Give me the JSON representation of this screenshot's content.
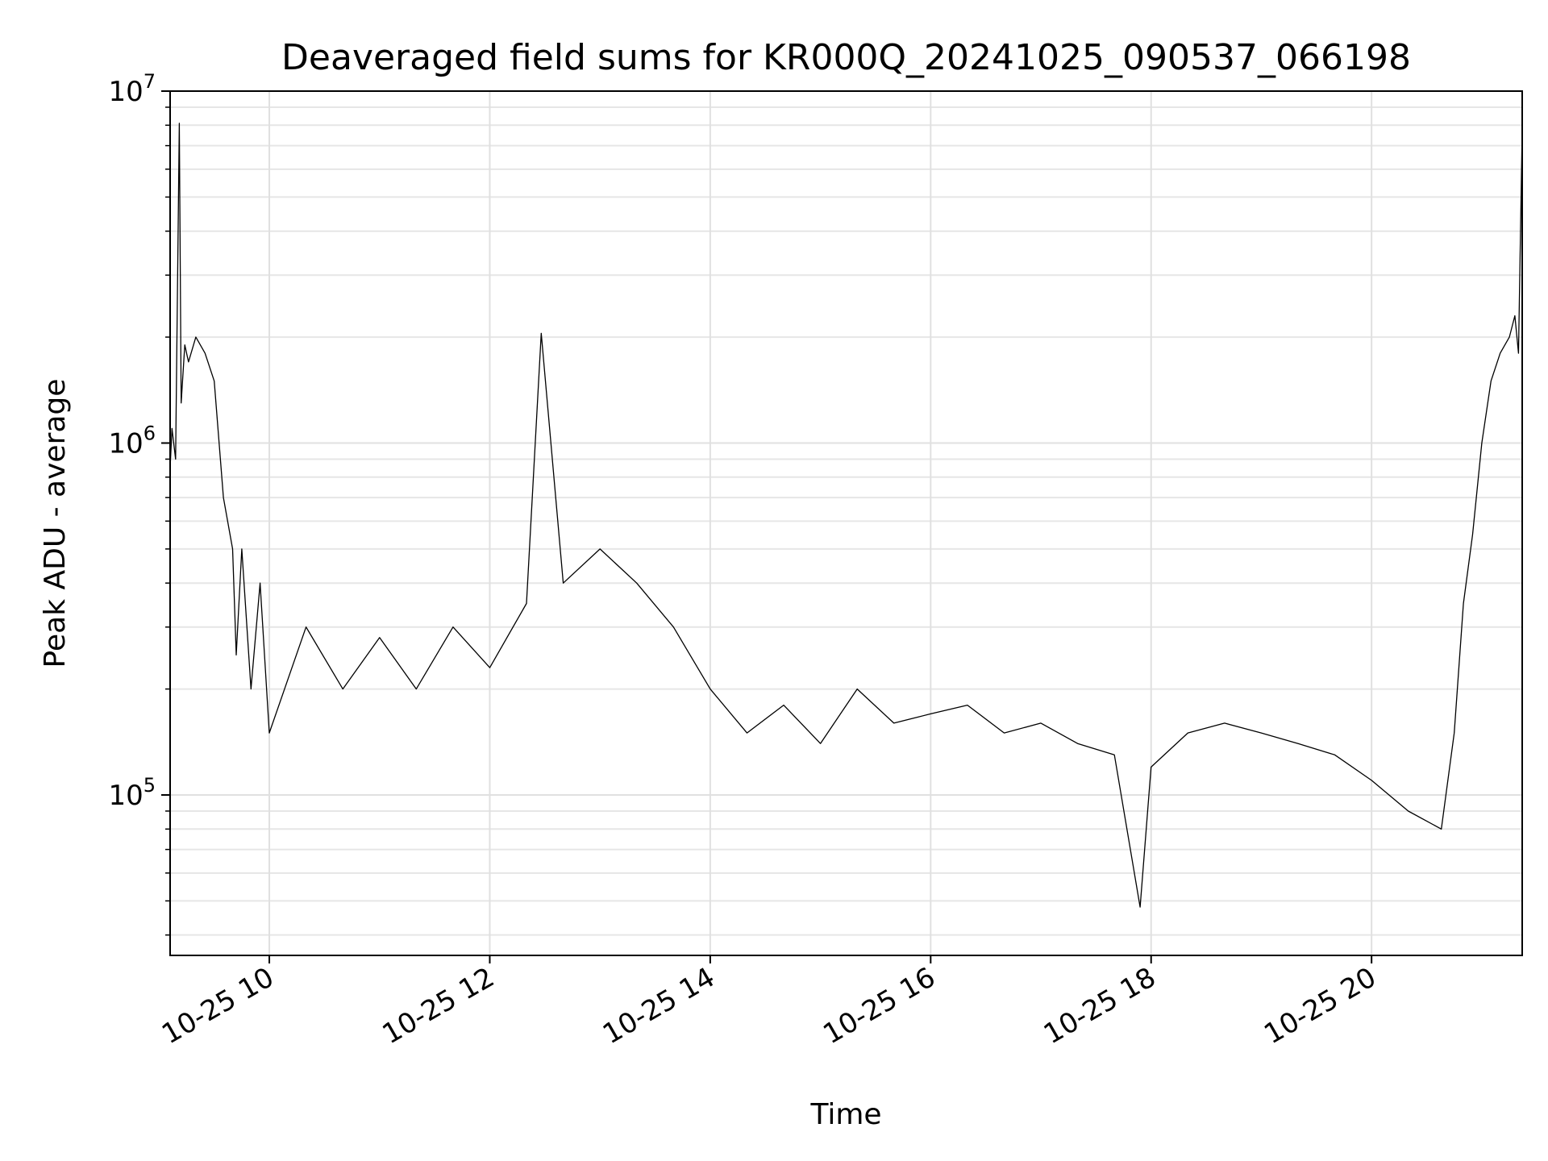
{
  "chart_data": {
    "type": "line",
    "title": "Deaveraged field sums for KR000Q_20241025_090537_066198",
    "xlabel": "Time",
    "ylabel": "Peak ADU - average",
    "yscale": "log",
    "x_range": [
      "2024-10-25 09:06",
      "2024-10-25 21:22"
    ],
    "ylim": [
      35000,
      10000000
    ],
    "grid": true,
    "line_color": "#000000",
    "x_ticks": [
      {
        "value": "2024-10-25 10:00",
        "label": "10-25 10"
      },
      {
        "value": "2024-10-25 12:00",
        "label": "10-25 12"
      },
      {
        "value": "2024-10-25 14:00",
        "label": "10-25 14"
      },
      {
        "value": "2024-10-25 16:00",
        "label": "10-25 16"
      },
      {
        "value": "2024-10-25 18:00",
        "label": "10-25 18"
      },
      {
        "value": "2024-10-25 20:00",
        "label": "10-25 20"
      }
    ],
    "y_ticks": [
      {
        "value": 100000,
        "base": "10",
        "exp": "5"
      },
      {
        "value": 1000000,
        "base": "10",
        "exp": "6"
      },
      {
        "value": 10000000,
        "base": "10",
        "exp": "7"
      }
    ],
    "series": [
      {
        "x": [
          "2024-10-25 09:06",
          "2024-10-25 09:07",
          "2024-10-25 09:09",
          "2024-10-25 09:11",
          "2024-10-25 09:12",
          "2024-10-25 09:14",
          "2024-10-25 09:16",
          "2024-10-25 09:20",
          "2024-10-25 09:25",
          "2024-10-25 09:30",
          "2024-10-25 09:35",
          "2024-10-25 09:40",
          "2024-10-25 09:42",
          "2024-10-25 09:45",
          "2024-10-25 09:50",
          "2024-10-25 09:55",
          "2024-10-25 10:00",
          "2024-10-25 10:20",
          "2024-10-25 10:40",
          "2024-10-25 11:00",
          "2024-10-25 11:20",
          "2024-10-25 11:40",
          "2024-10-25 12:00",
          "2024-10-25 12:20",
          "2024-10-25 12:28",
          "2024-10-25 12:40",
          "2024-10-25 13:00",
          "2024-10-25 13:20",
          "2024-10-25 13:40",
          "2024-10-25 14:00",
          "2024-10-25 14:20",
          "2024-10-25 14:40",
          "2024-10-25 15:00",
          "2024-10-25 15:20",
          "2024-10-25 15:40",
          "2024-10-25 16:00",
          "2024-10-25 16:20",
          "2024-10-25 16:40",
          "2024-10-25 17:00",
          "2024-10-25 17:20",
          "2024-10-25 17:40",
          "2024-10-25 17:54",
          "2024-10-25 18:00",
          "2024-10-25 18:20",
          "2024-10-25 18:40",
          "2024-10-25 19:00",
          "2024-10-25 19:20",
          "2024-10-25 19:40",
          "2024-10-25 20:00",
          "2024-10-25 20:20",
          "2024-10-25 20:38",
          "2024-10-25 20:45",
          "2024-10-25 20:50",
          "2024-10-25 20:55",
          "2024-10-25 21:00",
          "2024-10-25 21:05",
          "2024-10-25 21:10",
          "2024-10-25 21:15",
          "2024-10-25 21:18",
          "2024-10-25 21:20",
          "2024-10-25 21:22"
        ],
        "y": [
          850000,
          1100000,
          900000,
          8100000,
          1300000,
          1900000,
          1700000,
          2000000,
          1800000,
          1500000,
          700000,
          500000,
          250000,
          500000,
          200000,
          400000,
          150000,
          300000,
          200000,
          280000,
          200000,
          300000,
          230000,
          350000,
          2050000,
          400000,
          500000,
          400000,
          300000,
          200000,
          150000,
          180000,
          140000,
          200000,
          160000,
          170000,
          180000,
          150000,
          160000,
          140000,
          130000,
          48000,
          120000,
          150000,
          160000,
          150000,
          140000,
          130000,
          110000,
          90000,
          80000,
          150000,
          350000,
          550000,
          1000000,
          1500000,
          1800000,
          2000000,
          2300000,
          1800000,
          7800000
        ]
      }
    ]
  }
}
